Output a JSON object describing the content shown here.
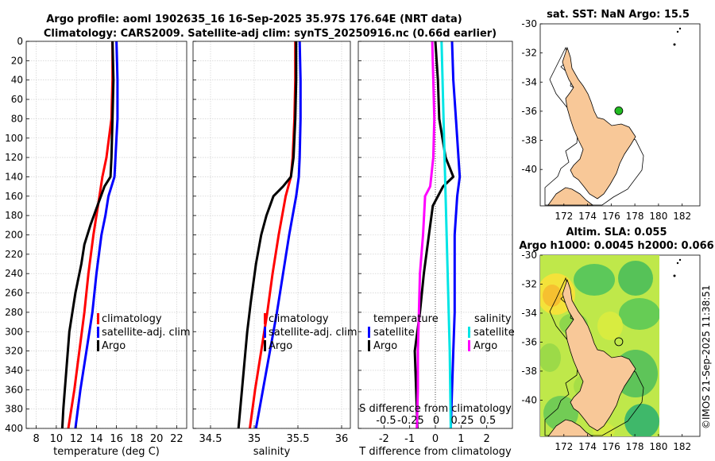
{
  "title_line1": "Argo profile: aoml 1902635_16 16-Sep-2025 35.97S 176.64E (NRT data)",
  "title_line2": "Climatology: CARS2009. Satellite-adj clim: synTS_20250916.nc (0.66d earlier)",
  "watermark": "©IMOS 21-Sep-2025 11:38:51",
  "colors": {
    "climatology": "#ff0000",
    "satellite": "#0000ff",
    "argo": "#000000",
    "temp_diff": "#ff00ff",
    "sal_diff": "#00e5e5",
    "land": "#f8c898",
    "float_marker": "#22bb22"
  },
  "chart_data": [
    {
      "type": "line",
      "id": "temperature",
      "xlabel": "temperature (deg C)",
      "ylabel": "",
      "xlim": [
        7,
        23
      ],
      "ylim": [
        400,
        0
      ],
      "xticks": [
        8,
        10,
        12,
        14,
        16,
        18,
        20,
        22
      ],
      "yticks": [
        0,
        20,
        40,
        60,
        80,
        100,
        120,
        140,
        160,
        180,
        200,
        220,
        240,
        260,
        280,
        300,
        320,
        340,
        360,
        380,
        400
      ],
      "grid": true,
      "legend": {
        "position": "lower-right",
        "items": [
          "climatology",
          "satellite-adj. clim",
          "Argo"
        ]
      },
      "series": [
        {
          "name": "climatology",
          "depth": [
            0,
            40,
            80,
            120,
            140,
            160,
            200,
            240,
            280,
            320,
            360,
            400
          ],
          "values": [
            15.6,
            15.6,
            15.5,
            15.0,
            14.6,
            14.3,
            13.7,
            13.2,
            12.8,
            12.3,
            11.8,
            11.2
          ]
        },
        {
          "name": "satellite-adj. clim",
          "depth": [
            0,
            40,
            80,
            100,
            140,
            160,
            180,
            200,
            240,
            280,
            320,
            360,
            400
          ],
          "values": [
            16.0,
            16.1,
            16.1,
            16.0,
            15.8,
            15.2,
            14.9,
            14.5,
            14.0,
            13.6,
            13.0,
            12.4,
            11.9
          ]
        },
        {
          "name": "Argo",
          "depth": [
            0,
            40,
            80,
            120,
            140,
            150,
            170,
            190,
            210,
            230,
            260,
            300,
            340,
            380,
            400
          ],
          "values": [
            15.6,
            15.7,
            15.6,
            15.5,
            15.4,
            14.8,
            14.1,
            13.4,
            12.8,
            12.5,
            11.9,
            11.3,
            11.0,
            10.7,
            10.6
          ]
        }
      ]
    },
    {
      "type": "line",
      "id": "salinity",
      "xlabel": "salinity",
      "ylabel": "",
      "xlim": [
        34.3,
        36.1
      ],
      "ylim": [
        400,
        0
      ],
      "xticks": [
        34.5,
        35,
        35.5,
        36
      ],
      "xtick_labels": [
        "34.5",
        "35",
        "35.5",
        "36"
      ],
      "grid": true,
      "legend": {
        "position": "lower-right",
        "items": [
          "climatology",
          "satellite-adj. clim",
          "Argo"
        ]
      },
      "series": [
        {
          "name": "climatology",
          "depth": [
            0,
            40,
            80,
            120,
            140,
            160,
            200,
            240,
            280,
            320,
            360,
            400
          ],
          "values": [
            35.47,
            35.47,
            35.46,
            35.44,
            35.42,
            35.36,
            35.28,
            35.21,
            35.15,
            35.08,
            35.01,
            34.95
          ]
        },
        {
          "name": "satellite-adj. clim",
          "depth": [
            0,
            40,
            80,
            120,
            140,
            160,
            200,
            240,
            280,
            320,
            360,
            400
          ],
          "values": [
            35.52,
            35.53,
            35.53,
            35.52,
            35.51,
            35.48,
            35.4,
            35.33,
            35.26,
            35.18,
            35.1,
            35.02
          ]
        },
        {
          "name": "Argo",
          "depth": [
            0,
            40,
            80,
            120,
            140,
            150,
            160,
            180,
            200,
            230,
            270,
            300,
            340,
            380,
            400
          ],
          "values": [
            35.48,
            35.48,
            35.47,
            35.45,
            35.42,
            35.33,
            35.22,
            35.14,
            35.08,
            35.02,
            34.96,
            34.92,
            34.88,
            34.84,
            34.82
          ]
        }
      ]
    },
    {
      "type": "line",
      "id": "difference",
      "xlabel": "T difference from climatology",
      "x2label": "S difference from climatology",
      "xlim": [
        -3,
        3
      ],
      "ylim": [
        400,
        0
      ],
      "xticks": [
        -2,
        -1,
        0,
        1,
        2
      ],
      "x2ticks": [
        "-0.5",
        "-0.25",
        "0",
        "0.25",
        "0.5"
      ],
      "grid": true,
      "legend_left": {
        "title": "temperature",
        "items": [
          "satellite",
          "Argo"
        ]
      },
      "legend_right": {
        "title": "salinity",
        "items": [
          "satellite",
          "Argo"
        ]
      },
      "series": [
        {
          "name": "temperature satellite",
          "depth": [
            0,
            40,
            80,
            100,
            140,
            160,
            200,
            240,
            280,
            320,
            360,
            400
          ],
          "values": [
            0.65,
            0.7,
            0.8,
            0.85,
            0.95,
            0.85,
            0.75,
            0.75,
            0.75,
            0.7,
            0.65,
            0.6
          ]
        },
        {
          "name": "temperature Argo",
          "depth": [
            0,
            40,
            80,
            120,
            140,
            150,
            170,
            200,
            240,
            280,
            320,
            360,
            400
          ],
          "values": [
            0.0,
            0.1,
            0.15,
            0.4,
            0.7,
            0.3,
            -0.1,
            -0.25,
            -0.45,
            -0.6,
            -0.8,
            -0.75,
            -0.7
          ]
        },
        {
          "name": "salinity satellite",
          "depth": [
            0,
            80,
            160,
            240,
            320,
            400
          ],
          "values": [
            0.06,
            0.08,
            0.1,
            0.12,
            0.14,
            0.15
          ]
        },
        {
          "name": "salinity Argo",
          "depth": [
            0,
            40,
            80,
            120,
            150,
            160,
            200,
            240,
            280,
            320,
            360,
            400
          ],
          "values": [
            -0.03,
            -0.02,
            -0.01,
            -0.02,
            -0.05,
            -0.1,
            -0.12,
            -0.15,
            -0.16,
            -0.17,
            -0.17,
            -0.18
          ]
        }
      ]
    },
    {
      "type": "map",
      "id": "sst-map",
      "title": "sat. SST: NaN Argo: 15.5",
      "lon_lim": [
        170,
        183.5
      ],
      "lat_lim": [
        -42.5,
        -30
      ],
      "lon_ticks": [
        172,
        174,
        176,
        178,
        180,
        182
      ],
      "lat_ticks": [
        -30,
        -32,
        -34,
        -36,
        -38,
        -40
      ],
      "float_position": {
        "lon": 176.64,
        "lat": -35.97
      }
    },
    {
      "type": "map",
      "id": "sla-map",
      "title_line1": "Altim. SLA: 0.055",
      "title_line2": "Argo h1000: 0.0045 h2000: 0.066",
      "lon_lim": [
        170,
        183.5
      ],
      "lat_lim": [
        -42.5,
        -30
      ],
      "lon_ticks": [
        172,
        174,
        176,
        178,
        180,
        182
      ],
      "lat_ticks": [
        -30,
        -32,
        -34,
        -36,
        -38,
        -40
      ],
      "float_position": {
        "lon": 176.64,
        "lat": -35.97
      }
    }
  ]
}
